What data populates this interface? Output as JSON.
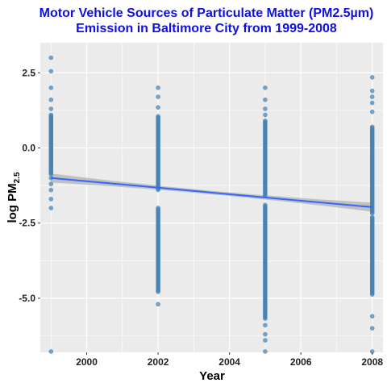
{
  "chart_data": {
    "type": "scatter",
    "title_line1": "Motor Vehicle Sources of Particulate Matter (PM2.5µm)",
    "title_line2": "Emission in Baltimore City from 1999-2008",
    "xlabel": "Year",
    "ylabel_main": "log PM",
    "ylabel_sub": "2.5",
    "x_ticks": [
      2000,
      2002,
      2004,
      2006,
      2008
    ],
    "y_ticks": [
      2.5,
      0.0,
      -2.5,
      -5.0
    ],
    "y_tick_labels": [
      "2.5",
      "0.0",
      "-2.5",
      "-5.0"
    ],
    "xlim": [
      1998.7,
      2008.3
    ],
    "ylim": [
      -6.8,
      3.5
    ],
    "grid": true,
    "colors": {
      "title": "#1010e0",
      "points": "#4682b4",
      "trend": "#3366ff",
      "band": "#b8b8b8",
      "panel": "#ebebeb",
      "grid": "#ffffff"
    },
    "series": [
      {
        "x": 1999,
        "dense_range": [
          -0.9,
          1.1
        ],
        "extra_points": [
          3.0,
          2.55,
          2.0,
          1.6,
          1.3,
          -1.0,
          -1.2,
          -1.4,
          -1.7,
          -2.0,
          -6.8
        ]
      },
      {
        "x": 2002,
        "dense_range": [
          -1.4,
          1.05
        ],
        "lower_range": [
          -2.0,
          -4.8
        ],
        "extra_points": [
          2.0,
          1.7,
          1.35,
          -5.2
        ]
      },
      {
        "x": 2005,
        "dense_range": [
          -1.6,
          0.9
        ],
        "lower_range": [
          -1.9,
          -5.7
        ],
        "extra_points": [
          2.0,
          1.6,
          1.3,
          1.1,
          -5.9,
          -6.2,
          -6.4,
          -6.8
        ]
      },
      {
        "x": 2008,
        "dense_range": [
          -2.2,
          0.7
        ],
        "lower_range": [
          -2.3,
          -4.9
        ],
        "extra_points": [
          2.35,
          1.9,
          1.7,
          1.5,
          1.2,
          -5.6,
          -6.0,
          -6.8
        ]
      }
    ],
    "trend": {
      "x_start": 1999,
      "y_start": -1.0,
      "x_end": 2008,
      "y_end": -1.97,
      "band_halfwidth_ends": 0.15,
      "band_halfwidth_mid": 0.06
    }
  }
}
